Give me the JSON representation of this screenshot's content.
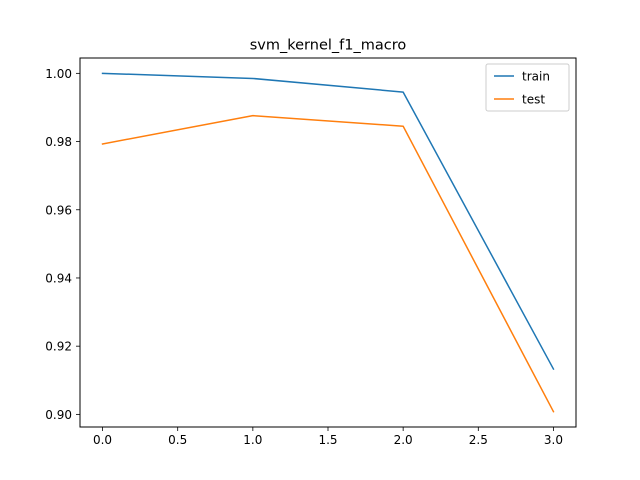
{
  "chart_data": {
    "type": "line",
    "title": "svm_kernel_f1_macro",
    "xlabel": "",
    "ylabel": "",
    "x": [
      0,
      1,
      2,
      3
    ],
    "series": [
      {
        "name": "train",
        "color": "#1f77b4",
        "values": [
          1.0,
          0.9985,
          0.9945,
          0.9133
        ]
      },
      {
        "name": "test",
        "color": "#ff7f0e",
        "values": [
          0.9793,
          0.9876,
          0.9845,
          0.9008
        ]
      }
    ],
    "xlim": [
      -0.15,
      3.15
    ],
    "ylim": [
      0.8963,
      1.0045
    ],
    "xticks": [
      0.0,
      0.5,
      1.0,
      1.5,
      2.0,
      2.5,
      3.0
    ],
    "xtick_labels": [
      "0.0",
      "0.5",
      "1.0",
      "1.5",
      "2.0",
      "2.5",
      "3.0"
    ],
    "yticks": [
      0.9,
      0.92,
      0.94,
      0.96,
      0.98,
      1.0
    ],
    "ytick_labels": [
      "0.90",
      "0.92",
      "0.94",
      "0.96",
      "0.98",
      "1.00"
    ],
    "grid": false,
    "legend_position": "top-right"
  }
}
